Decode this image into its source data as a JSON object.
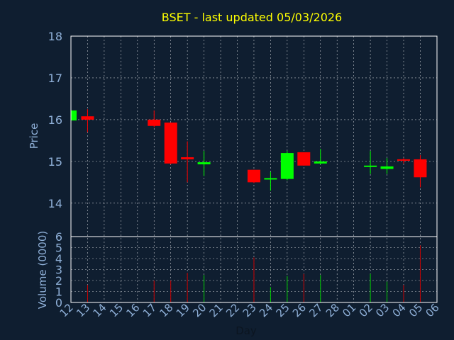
{
  "chart_data": {
    "type": "candlestick",
    "title": "BSET - last updated 05/03/2026",
    "xlabel": "Day",
    "ylabel_price": "Price",
    "ylabel_volume": "Volume (0000)",
    "x_ticks": [
      "12",
      "13",
      "14",
      "15",
      "16",
      "17",
      "18",
      "19",
      "20",
      "21",
      "22",
      "23",
      "24",
      "25",
      "26",
      "27",
      "28",
      "01",
      "02",
      "03",
      "04",
      "05",
      "06"
    ],
    "price_ticks": [
      14,
      15,
      16,
      17,
      18
    ],
    "price_ylim": [
      13.2,
      18.0
    ],
    "volume_ticks": [
      0,
      1,
      2,
      3,
      4,
      5,
      6
    ],
    "volume_ylim": [
      0,
      6
    ],
    "grid": true,
    "colors": {
      "background": "#0f1e30",
      "title": "#ffff00",
      "axis_text": "#8fb0d8",
      "grid": "#ffffff",
      "up": "#00ff00",
      "down": "#ff0000",
      "volume_up": "#00cc00",
      "volume_down": "#cc0000"
    },
    "candles": [
      {
        "day": "12",
        "open": 15.98,
        "high": 16.22,
        "low": 15.98,
        "close": 16.22,
        "volume": 0
      },
      {
        "day": "13",
        "open": 16.08,
        "high": 16.25,
        "low": 15.7,
        "close": 16.0,
        "volume": 1.6
      },
      {
        "day": "17",
        "open": 16.0,
        "high": 16.22,
        "low": 15.82,
        "close": 15.85,
        "volume": 2.0
      },
      {
        "day": "18",
        "open": 15.93,
        "high": 15.93,
        "low": 14.93,
        "close": 14.95,
        "volume": 2.0
      },
      {
        "day": "19",
        "open": 15.1,
        "high": 15.48,
        "low": 14.5,
        "close": 15.05,
        "volume": 2.7
      },
      {
        "day": "20",
        "open": 14.93,
        "high": 15.25,
        "low": 14.65,
        "close": 14.98,
        "volume": 2.5
      },
      {
        "day": "23",
        "open": 14.8,
        "high": 14.8,
        "low": 14.48,
        "close": 14.5,
        "volume": 4.1
      },
      {
        "day": "24",
        "open": 14.58,
        "high": 14.75,
        "low": 14.3,
        "close": 14.6,
        "volume": 1.4
      },
      {
        "day": "25",
        "open": 14.58,
        "high": 15.25,
        "low": 14.55,
        "close": 15.2,
        "volume": 2.4
      },
      {
        "day": "26",
        "open": 15.22,
        "high": 15.22,
        "low": 14.9,
        "close": 14.9,
        "volume": 2.6
      },
      {
        "day": "27",
        "open": 14.95,
        "high": 15.3,
        "low": 14.93,
        "close": 15.0,
        "volume": 2.5
      },
      {
        "day": "02",
        "open": 14.87,
        "high": 15.25,
        "low": 14.7,
        "close": 14.9,
        "volume": 2.6
      },
      {
        "day": "03",
        "open": 14.82,
        "high": 15.08,
        "low": 14.7,
        "close": 14.88,
        "volume": 1.9
      },
      {
        "day": "04",
        "open": 15.05,
        "high": 15.08,
        "low": 14.95,
        "close": 15.03,
        "volume": 1.6
      },
      {
        "day": "05",
        "open": 15.05,
        "high": 15.15,
        "low": 14.38,
        "close": 14.62,
        "volume": 5.2
      }
    ]
  }
}
